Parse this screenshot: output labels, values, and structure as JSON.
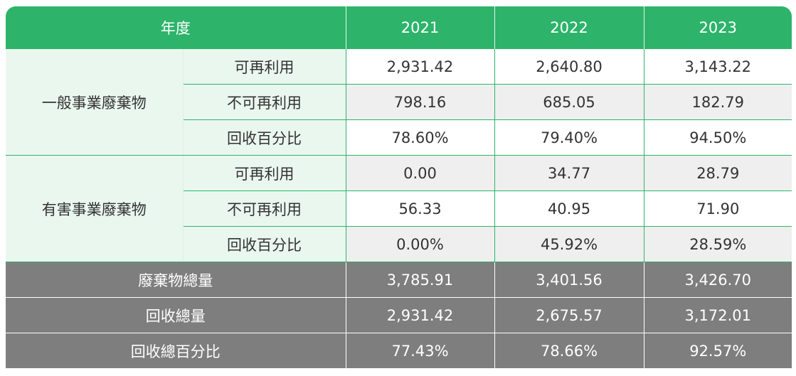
{
  "header": {
    "year_label": "年度",
    "years": [
      "2021",
      "2022",
      "2023"
    ]
  },
  "groups": [
    {
      "name": "一般事業廢棄物",
      "rows": [
        {
          "label": "可再利用",
          "values": [
            "2,931.42",
            "2,640.80",
            "3,143.22"
          ]
        },
        {
          "label": "不可再利用",
          "values": [
            "798.16",
            "685.05",
            "182.79"
          ]
        },
        {
          "label": "回收百分比",
          "values": [
            "78.60%",
            "79.40%",
            "94.50%"
          ]
        }
      ]
    },
    {
      "name": "有害事業廢棄物",
      "rows": [
        {
          "label": "可再利用",
          "values": [
            "0.00",
            "34.77",
            "28.79"
          ]
        },
        {
          "label": "不可再利用",
          "values": [
            "56.33",
            "40.95",
            "71.90"
          ]
        },
        {
          "label": "回收百分比",
          "values": [
            "0.00%",
            "45.92%",
            "28.59%"
          ]
        }
      ]
    }
  ],
  "totals": [
    {
      "label": "廢棄物總量",
      "values": [
        "3,785.91",
        "3,401.56",
        "3,426.70"
      ]
    },
    {
      "label": "回收總量",
      "values": [
        "2,931.42",
        "2,675.57",
        "3,172.01"
      ]
    },
    {
      "label": "回收總百分比",
      "values": [
        "77.43%",
        "78.66%",
        "92.57%"
      ]
    }
  ],
  "colors": {
    "header_green": "#2db46a",
    "label_bg": "#eaf7ef",
    "total_grey": "#7e7e7e"
  }
}
